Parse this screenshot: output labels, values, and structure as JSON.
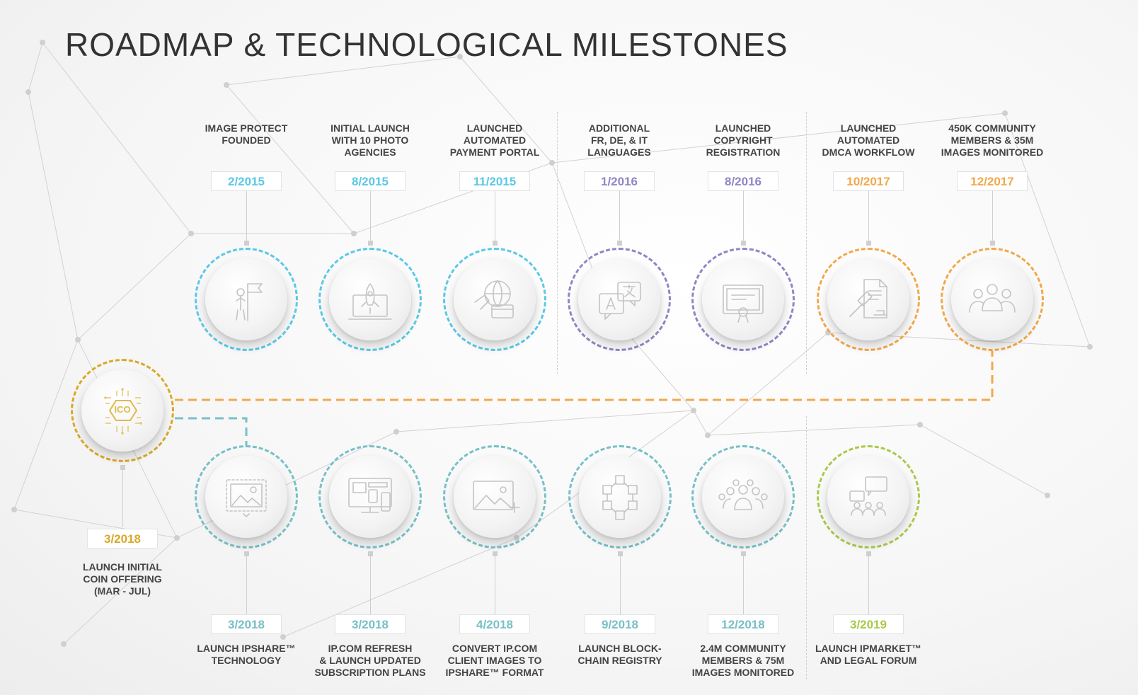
{
  "title": "ROADMAP & TECHNOLOGICAL MILESTONES",
  "colors": {
    "blue": "#5bc8e6",
    "purple": "#8f86c6",
    "orange": "#f2a84a",
    "gold": "#d9a928",
    "teal": "#77c0c7",
    "green": "#a9c94a",
    "connector": "#f2a84a"
  },
  "top_row": [
    {
      "date": "2/2015",
      "label": "IMAGE PROTECT\nFOUNDED",
      "color": "blue",
      "icon": "person-flag-icon"
    },
    {
      "date": "8/2015",
      "label": "INITIAL LAUNCH\nWITH 10 PHOTO\nAGENCIES",
      "color": "blue",
      "icon": "rocket-laptop-icon"
    },
    {
      "date": "11/2015",
      "label": "LAUNCHED\nAUTOMATED\nPAYMENT PORTAL",
      "color": "blue",
      "icon": "globe-card-icon"
    },
    {
      "date": "1/2016",
      "label": "ADDITIONAL\nFR, DE, & IT\nLANGUAGES",
      "color": "purple",
      "icon": "translate-bubbles-icon"
    },
    {
      "date": "8/2016",
      "label": "LAUNCHED\nCOPYRIGHT\nREGISTRATION",
      "color": "purple",
      "icon": "certificate-icon"
    },
    {
      "date": "10/2017",
      "label": "LAUNCHED\nAUTOMATED\nDMCA WORKFLOW",
      "color": "orange",
      "icon": "gavel-document-icon"
    },
    {
      "date": "12/2017",
      "label": "450K COMMUNITY\nMEMBERS & 35M\nIMAGES MONITORED",
      "color": "orange",
      "icon": "community-group-icon"
    }
  ],
  "ico": {
    "date": "3/2018",
    "label": "LAUNCH INITIAL\nCOIN OFFERING\n(MAR - JUL)",
    "color": "gold",
    "icon": "ico-chip-icon",
    "chip_text": "ICO"
  },
  "bottom_row": [
    {
      "date": "3/2018",
      "label": "LAUNCH IPSHARE™\nTECHNOLOGY",
      "color": "teal",
      "icon": "image-frame-icon"
    },
    {
      "date": "3/2018",
      "label": "IP.COM REFRESH\n& LAUNCH UPDATED\nSUBSCRIPTION PLANS",
      "color": "teal",
      "icon": "devices-icon"
    },
    {
      "date": "4/2018",
      "label": "CONVERT IP.COM\nCLIENT IMAGES TO\nIPSHARE™ FORMAT",
      "color": "teal",
      "icon": "image-add-icon"
    },
    {
      "date": "9/2018",
      "label": "LAUNCH BLOCK-\nCHAIN REGISTRY",
      "color": "teal",
      "icon": "blockchain-icon"
    },
    {
      "date": "12/2018",
      "label": "2.4M COMMUNITY\nMEMBERS & 75M\nIMAGES MONITORED",
      "color": "teal",
      "icon": "large-community-icon"
    },
    {
      "date": "3/2019",
      "label": "LAUNCH IPMARKET™\nAND LEGAL FORUM",
      "color": "green",
      "icon": "forum-icon"
    }
  ]
}
